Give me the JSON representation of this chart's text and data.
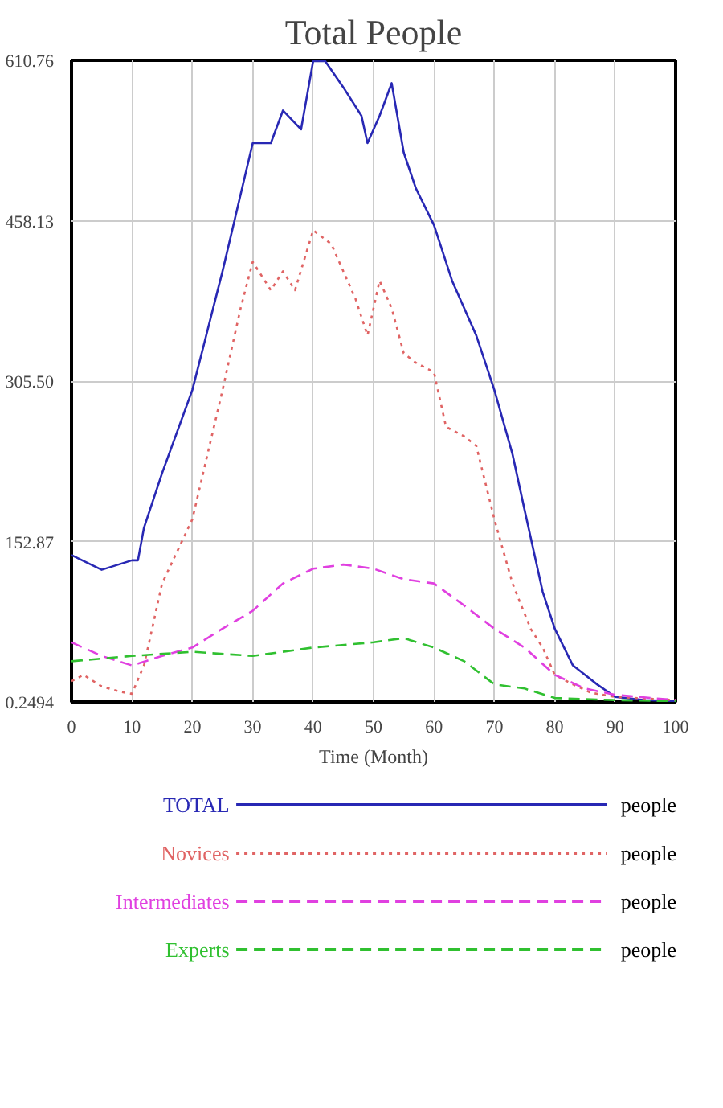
{
  "chart_data": {
    "type": "line",
    "title": "Total People",
    "xlabel": "Time (Month)",
    "x": [
      0,
      5,
      10,
      11,
      12,
      15,
      20,
      25,
      30,
      33,
      35,
      38,
      40,
      42,
      45,
      48,
      49,
      51,
      53,
      55,
      57,
      60,
      63,
      65,
      67,
      70,
      73,
      75,
      78,
      80,
      83,
      85,
      87,
      90,
      95,
      100
    ],
    "series": [
      {
        "name": "TOTAL",
        "color": "#2828b4",
        "line_style": "solid",
        "values": [
          140,
          126,
          135,
          135,
          166,
          218,
          297,
          410,
          532,
          532,
          563,
          545,
          610,
          610,
          585,
          558,
          532,
          558,
          589,
          523,
          489,
          454,
          401,
          375,
          349,
          297,
          236,
          183,
          105,
          70,
          35,
          26,
          17,
          5,
          2,
          1
        ]
      },
      {
        "name": "Novices",
        "color": "#e06464",
        "line_style": "dotted",
        "x": [
          0,
          2,
          5,
          8,
          10,
          12,
          15,
          20,
          25,
          28,
          30,
          33,
          35,
          37,
          40,
          43,
          45,
          47,
          49,
          51,
          53,
          55,
          57,
          60,
          62,
          65,
          67,
          70,
          73,
          76,
          78,
          80,
          83,
          86,
          90,
          100
        ],
        "values": [
          20,
          26,
          15,
          10,
          8,
          35,
          113,
          174,
          297,
          375,
          419,
          392,
          410,
          392,
          449,
          436,
          410,
          384,
          349,
          401,
          375,
          332,
          323,
          314,
          262,
          253,
          244,
          174,
          113,
          70,
          52,
          26,
          17,
          9,
          5,
          2
        ]
      },
      {
        "name": "Intermediates",
        "color": "#e040e0",
        "line_style": "dashed",
        "x": [
          0,
          5,
          10,
          15,
          20,
          25,
          30,
          35,
          40,
          45,
          50,
          55,
          60,
          65,
          70,
          75,
          80,
          85,
          90,
          100
        ],
        "values": [
          57,
          44,
          35,
          44,
          52,
          70,
          87,
          113,
          127,
          131,
          127,
          117,
          113,
          92,
          70,
          52,
          26,
          13,
          7,
          2
        ]
      },
      {
        "name": "Experts",
        "color": "#30c030",
        "line_style": "dashed",
        "x": [
          0,
          10,
          20,
          30,
          40,
          50,
          55,
          60,
          65,
          70,
          75,
          80,
          90,
          100
        ],
        "values": [
          39,
          44,
          48,
          44,
          52,
          57,
          61,
          52,
          39,
          17,
          13,
          4,
          2,
          1
        ]
      }
    ],
    "xlim": [
      0,
      100
    ],
    "xticks": [
      0,
      10,
      20,
      30,
      40,
      50,
      60,
      70,
      80,
      90,
      100
    ],
    "ylim": [
      0.2494,
      610.76
    ],
    "yticks": [
      {
        "value": 0.2494,
        "label": "0.2494"
      },
      {
        "value": 152.87,
        "label": "152.87"
      },
      {
        "value": 305.5,
        "label": "305.50"
      },
      {
        "value": 458.13,
        "label": "458.13"
      },
      {
        "value": 610.76,
        "label": "610.76"
      }
    ],
    "grid": true,
    "legend": "bottom",
    "annotations": [
      "people",
      "people",
      "people",
      "people"
    ]
  }
}
